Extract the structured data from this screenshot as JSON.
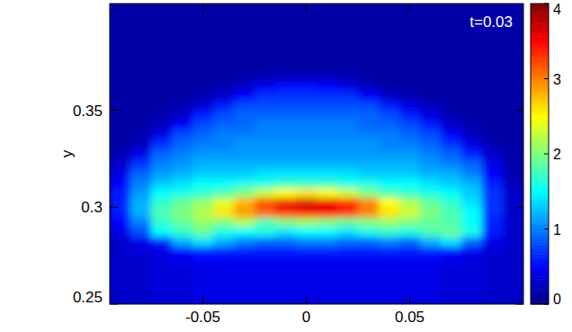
{
  "chart_data": {
    "type": "heatmap",
    "annotation": "t=0.03",
    "y_label": "y",
    "xlim": [
      -0.095,
      0.105
    ],
    "ylim": [
      0.25,
      0.405
    ],
    "xticks": [
      -0.05,
      0,
      0.05
    ],
    "yticks": [
      0.25,
      0.3,
      0.35
    ],
    "color_range": [
      0,
      4
    ],
    "color_ticks": [
      0,
      1,
      2,
      3,
      4
    ],
    "x": [
      -0.09,
      -0.08,
      -0.07,
      -0.06,
      -0.05,
      -0.04,
      -0.03,
      -0.02,
      -0.01,
      0,
      0.01,
      0.02,
      0.03,
      0.04,
      0.05,
      0.06,
      0.07,
      0.08,
      0.09,
      0.1
    ],
    "y": [
      0.2525,
      0.2575,
      0.2625,
      0.2675,
      0.2725,
      0.2775,
      0.2825,
      0.2875,
      0.2925,
      0.2975,
      0.3025,
      0.3075,
      0.3125,
      0.3175,
      0.3225,
      0.3275,
      0.3325,
      0.3375,
      0.3425,
      0.3475,
      0.3525,
      0.3575,
      0.3625,
      0.3675,
      0.3725,
      0.3775,
      0.3825,
      0.3875,
      0.3925,
      0.3975,
      0.4025
    ],
    "cells": [
      [
        0.3,
        0.3,
        0.35,
        0.35,
        0.4,
        0.4,
        0.4,
        0.4,
        0.4,
        0.4,
        0.4,
        0.4,
        0.4,
        0.4,
        0.4,
        0.4,
        0.35,
        0.35,
        0.3,
        0.3
      ],
      [
        0.3,
        0.3,
        0.35,
        0.35,
        0.4,
        0.4,
        0.4,
        0.4,
        0.4,
        0.4,
        0.4,
        0.4,
        0.4,
        0.4,
        0.4,
        0.4,
        0.35,
        0.35,
        0.3,
        0.3
      ],
      [
        0.3,
        0.3,
        0.35,
        0.35,
        0.4,
        0.4,
        0.4,
        0.4,
        0.4,
        0.4,
        0.4,
        0.4,
        0.4,
        0.4,
        0.4,
        0.4,
        0.35,
        0.35,
        0.3,
        0.3
      ],
      [
        0.3,
        0.3,
        0.35,
        0.35,
        0.4,
        0.4,
        0.4,
        0.4,
        0.4,
        0.4,
        0.4,
        0.4,
        0.4,
        0.4,
        0.4,
        0.4,
        0.35,
        0.35,
        0.3,
        0.3
      ],
      [
        0.3,
        0.3,
        0.35,
        0.4,
        0.45,
        0.45,
        0.45,
        0.45,
        0.45,
        0.45,
        0.45,
        0.45,
        0.45,
        0.45,
        0.45,
        0.45,
        0.4,
        0.35,
        0.3,
        0.3
      ],
      [
        0.3,
        0.35,
        0.4,
        0.5,
        0.6,
        0.6,
        0.6,
        0.6,
        0.6,
        0.6,
        0.6,
        0.6,
        0.6,
        0.6,
        0.6,
        0.6,
        0.55,
        0.45,
        0.35,
        0.3
      ],
      [
        0.3,
        0.4,
        0.6,
        1.2,
        1.4,
        1.2,
        1.0,
        0.9,
        0.9,
        1.0,
        1.0,
        0.9,
        0.9,
        1.0,
        0.9,
        1.2,
        1.4,
        0.9,
        0.4,
        0.3
      ],
      [
        0.4,
        0.8,
        1.5,
        1.7,
        1.9,
        1.6,
        1.5,
        1.6,
        1.4,
        1.5,
        1.5,
        1.4,
        1.6,
        1.7,
        1.6,
        1.8,
        1.9,
        1.6,
        0.6,
        0.3
      ],
      [
        0.5,
        1.0,
        1.7,
        1.9,
        2.1,
        2.0,
        2.2,
        1.8,
        2.0,
        2.1,
        2.0,
        1.9,
        2.0,
        2.1,
        2.0,
        1.9,
        1.8,
        1.5,
        0.6,
        0.3
      ],
      [
        0.6,
        1.2,
        1.8,
        2.0,
        2.2,
        2.6,
        2.9,
        3.1,
        3.3,
        3.4,
        3.5,
        3.3,
        3.0,
        2.6,
        2.3,
        2.0,
        1.8,
        1.5,
        0.7,
        0.3
      ],
      [
        0.6,
        1.2,
        1.7,
        1.9,
        2.1,
        2.4,
        2.8,
        3.2,
        3.6,
        3.7,
        3.6,
        3.4,
        3.0,
        2.5,
        2.2,
        1.9,
        1.7,
        1.4,
        0.7,
        0.3
      ],
      [
        0.6,
        1.1,
        1.5,
        1.6,
        1.7,
        1.8,
        2.0,
        2.3,
        2.5,
        2.6,
        2.5,
        2.3,
        2.0,
        1.8,
        1.7,
        1.6,
        1.5,
        1.3,
        0.7,
        0.3
      ],
      [
        0.5,
        1.0,
        1.3,
        1.4,
        1.5,
        1.5,
        1.6,
        1.6,
        1.7,
        1.7,
        1.7,
        1.6,
        1.6,
        1.5,
        1.5,
        1.4,
        1.3,
        1.2,
        0.6,
        0.25
      ],
      [
        0.4,
        0.9,
        1.1,
        1.2,
        1.3,
        1.3,
        1.3,
        1.4,
        1.4,
        1.4,
        1.4,
        1.4,
        1.3,
        1.3,
        1.3,
        1.2,
        1.2,
        1.0,
        0.5,
        0.2
      ],
      [
        0.3,
        0.7,
        1.0,
        1.1,
        1.2,
        1.2,
        1.2,
        1.2,
        1.2,
        1.2,
        1.2,
        1.2,
        1.2,
        1.2,
        1.2,
        1.1,
        1.0,
        0.9,
        0.4,
        0.2
      ],
      [
        0.2,
        0.4,
        0.9,
        1.0,
        1.1,
        1.1,
        1.1,
        1.1,
        1.1,
        1.1,
        1.1,
        1.1,
        1.1,
        1.1,
        1.1,
        1.0,
        0.9,
        0.6,
        0.3,
        0.15
      ],
      [
        0.15,
        0.25,
        0.7,
        0.9,
        1.0,
        1.0,
        1.1,
        1.1,
        1.1,
        1.1,
        1.1,
        1.1,
        1.1,
        1.0,
        1.0,
        0.9,
        0.7,
        0.4,
        0.2,
        0.15
      ],
      [
        0.15,
        0.2,
        0.4,
        0.8,
        0.9,
        1.0,
        1.0,
        1.0,
        1.0,
        1.0,
        1.0,
        1.0,
        1.0,
        1.0,
        0.9,
        0.8,
        0.5,
        0.25,
        0.15,
        0.15
      ],
      [
        0.15,
        0.15,
        0.25,
        0.5,
        0.8,
        0.9,
        0.9,
        1.0,
        1.0,
        1.0,
        1.0,
        1.0,
        0.9,
        0.9,
        0.8,
        0.6,
        0.3,
        0.2,
        0.15,
        0.15
      ],
      [
        0.15,
        0.15,
        0.2,
        0.3,
        0.6,
        0.8,
        0.9,
        0.9,
        0.9,
        0.9,
        0.9,
        0.9,
        0.9,
        0.8,
        0.6,
        0.4,
        0.2,
        0.15,
        0.15,
        0.15
      ],
      [
        0.15,
        0.15,
        0.15,
        0.2,
        0.35,
        0.6,
        0.8,
        0.8,
        0.8,
        0.8,
        0.8,
        0.8,
        0.8,
        0.6,
        0.4,
        0.25,
        0.15,
        0.15,
        0.15,
        0.15
      ],
      [
        0.15,
        0.15,
        0.15,
        0.15,
        0.2,
        0.3,
        0.5,
        0.7,
        0.7,
        0.7,
        0.7,
        0.7,
        0.5,
        0.3,
        0.2,
        0.15,
        0.15,
        0.15,
        0.15,
        0.15
      ],
      [
        0.15,
        0.15,
        0.15,
        0.15,
        0.15,
        0.2,
        0.3,
        0.45,
        0.55,
        0.55,
        0.5,
        0.4,
        0.25,
        0.15,
        0.15,
        0.15,
        0.15,
        0.15,
        0.15,
        0.15
      ],
      [
        0.15,
        0.15,
        0.15,
        0.15,
        0.15,
        0.15,
        0.15,
        0.2,
        0.25,
        0.25,
        0.25,
        0.2,
        0.15,
        0.15,
        0.15,
        0.15,
        0.15,
        0.15,
        0.15,
        0.15
      ],
      [
        0.15,
        0.15,
        0.15,
        0.15,
        0.15,
        0.15,
        0.15,
        0.15,
        0.15,
        0.15,
        0.15,
        0.15,
        0.15,
        0.15,
        0.15,
        0.15,
        0.15,
        0.15,
        0.15,
        0.15
      ],
      [
        0.15,
        0.15,
        0.15,
        0.15,
        0.15,
        0.15,
        0.15,
        0.15,
        0.15,
        0.15,
        0.15,
        0.15,
        0.15,
        0.15,
        0.15,
        0.15,
        0.15,
        0.15,
        0.15,
        0.15
      ],
      [
        0.15,
        0.15,
        0.15,
        0.15,
        0.15,
        0.15,
        0.15,
        0.15,
        0.15,
        0.15,
        0.15,
        0.15,
        0.15,
        0.15,
        0.15,
        0.15,
        0.15,
        0.15,
        0.15,
        0.15
      ],
      [
        0.15,
        0.15,
        0.15,
        0.15,
        0.15,
        0.15,
        0.15,
        0.15,
        0.15,
        0.15,
        0.15,
        0.15,
        0.15,
        0.15,
        0.15,
        0.15,
        0.15,
        0.15,
        0.15,
        0.15
      ],
      [
        0.15,
        0.15,
        0.15,
        0.15,
        0.15,
        0.15,
        0.15,
        0.15,
        0.15,
        0.15,
        0.15,
        0.15,
        0.15,
        0.15,
        0.15,
        0.15,
        0.15,
        0.15,
        0.15,
        0.15
      ],
      [
        0.15,
        0.15,
        0.15,
        0.15,
        0.15,
        0.15,
        0.15,
        0.15,
        0.15,
        0.15,
        0.15,
        0.15,
        0.15,
        0.15,
        0.15,
        0.15,
        0.15,
        0.15,
        0.15,
        0.15
      ],
      [
        0.15,
        0.15,
        0.15,
        0.15,
        0.15,
        0.15,
        0.15,
        0.15,
        0.15,
        0.15,
        0.15,
        0.15,
        0.15,
        0.15,
        0.15,
        0.15,
        0.15,
        0.15,
        0.15,
        0.15
      ]
    ]
  }
}
